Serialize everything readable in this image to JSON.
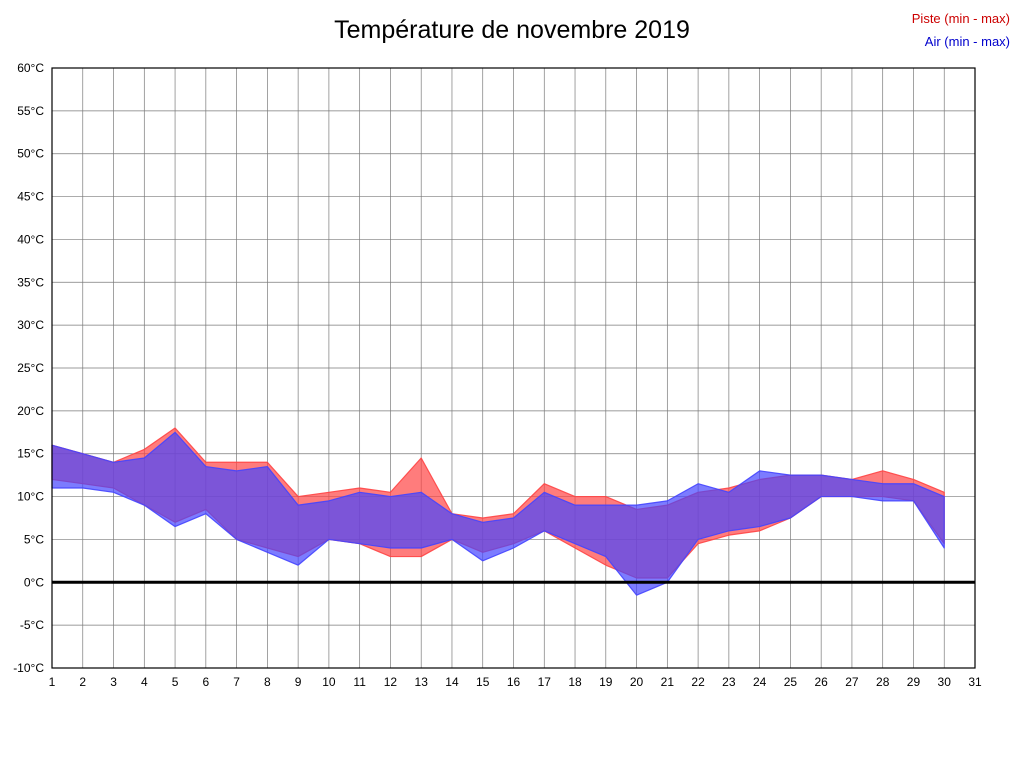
{
  "title": "Température de novembre 2019",
  "legend": {
    "piste": {
      "label": "Piste (min - max)",
      "color": "#cc0000"
    },
    "air": {
      "label": "Air (min - max)",
      "color": "#0000cc"
    }
  },
  "chart_data": {
    "type": "area",
    "subtype": "min-max-band",
    "title": "Température de novembre 2019",
    "xlabel": "",
    "ylabel": "",
    "xlim": [
      1,
      31
    ],
    "ylim": [
      -10,
      60
    ],
    "ytick_step": 5,
    "ytick_suffix": "°C",
    "zero_line": 0,
    "grid": true,
    "legend_position": "top-right",
    "x": [
      1,
      2,
      3,
      4,
      5,
      6,
      7,
      8,
      9,
      10,
      11,
      12,
      13,
      14,
      15,
      16,
      17,
      18,
      19,
      20,
      21,
      22,
      23,
      24,
      25,
      26,
      27,
      28,
      29,
      30
    ],
    "series": [
      {
        "name": "Piste (min - max)",
        "color": "#ff4444",
        "opacity": 0.7,
        "min": [
          12,
          11.5,
          11,
          9,
          7,
          8.5,
          5,
          4,
          3,
          5,
          4.5,
          3,
          3,
          5,
          3.5,
          4.5,
          6,
          4,
          2,
          0.5,
          0.5,
          4.5,
          5.5,
          6,
          7.5,
          10,
          10,
          10,
          9.5,
          4.5
        ],
        "max": [
          16,
          15,
          14,
          15.5,
          18,
          14,
          14,
          14,
          10,
          10.5,
          11,
          10.5,
          14.5,
          8,
          7.5,
          8,
          11.5,
          10,
          10,
          8.5,
          9,
          10.5,
          11,
          12,
          12.5,
          12.5,
          12,
          13,
          12,
          10.5
        ]
      },
      {
        "name": "Air (min - max)",
        "color": "#4444ff",
        "opacity": 0.7,
        "min": [
          11,
          11,
          10.5,
          9,
          6.5,
          8,
          5,
          3.5,
          2,
          5,
          4.5,
          4,
          4,
          5,
          2.5,
          4,
          6,
          4.5,
          3,
          -1.5,
          0,
          5,
          6,
          6.5,
          7.5,
          10,
          10,
          9.5,
          9.5,
          4
        ],
        "max": [
          16,
          15,
          14,
          14.5,
          17.5,
          13.5,
          13,
          13.5,
          9,
          9.5,
          10.5,
          10,
          10.5,
          8,
          7,
          7.5,
          10.5,
          9,
          9,
          9,
          9.5,
          11.5,
          10.5,
          13,
          12.5,
          12.5,
          12,
          11.5,
          11.5,
          10
        ]
      }
    ]
  }
}
